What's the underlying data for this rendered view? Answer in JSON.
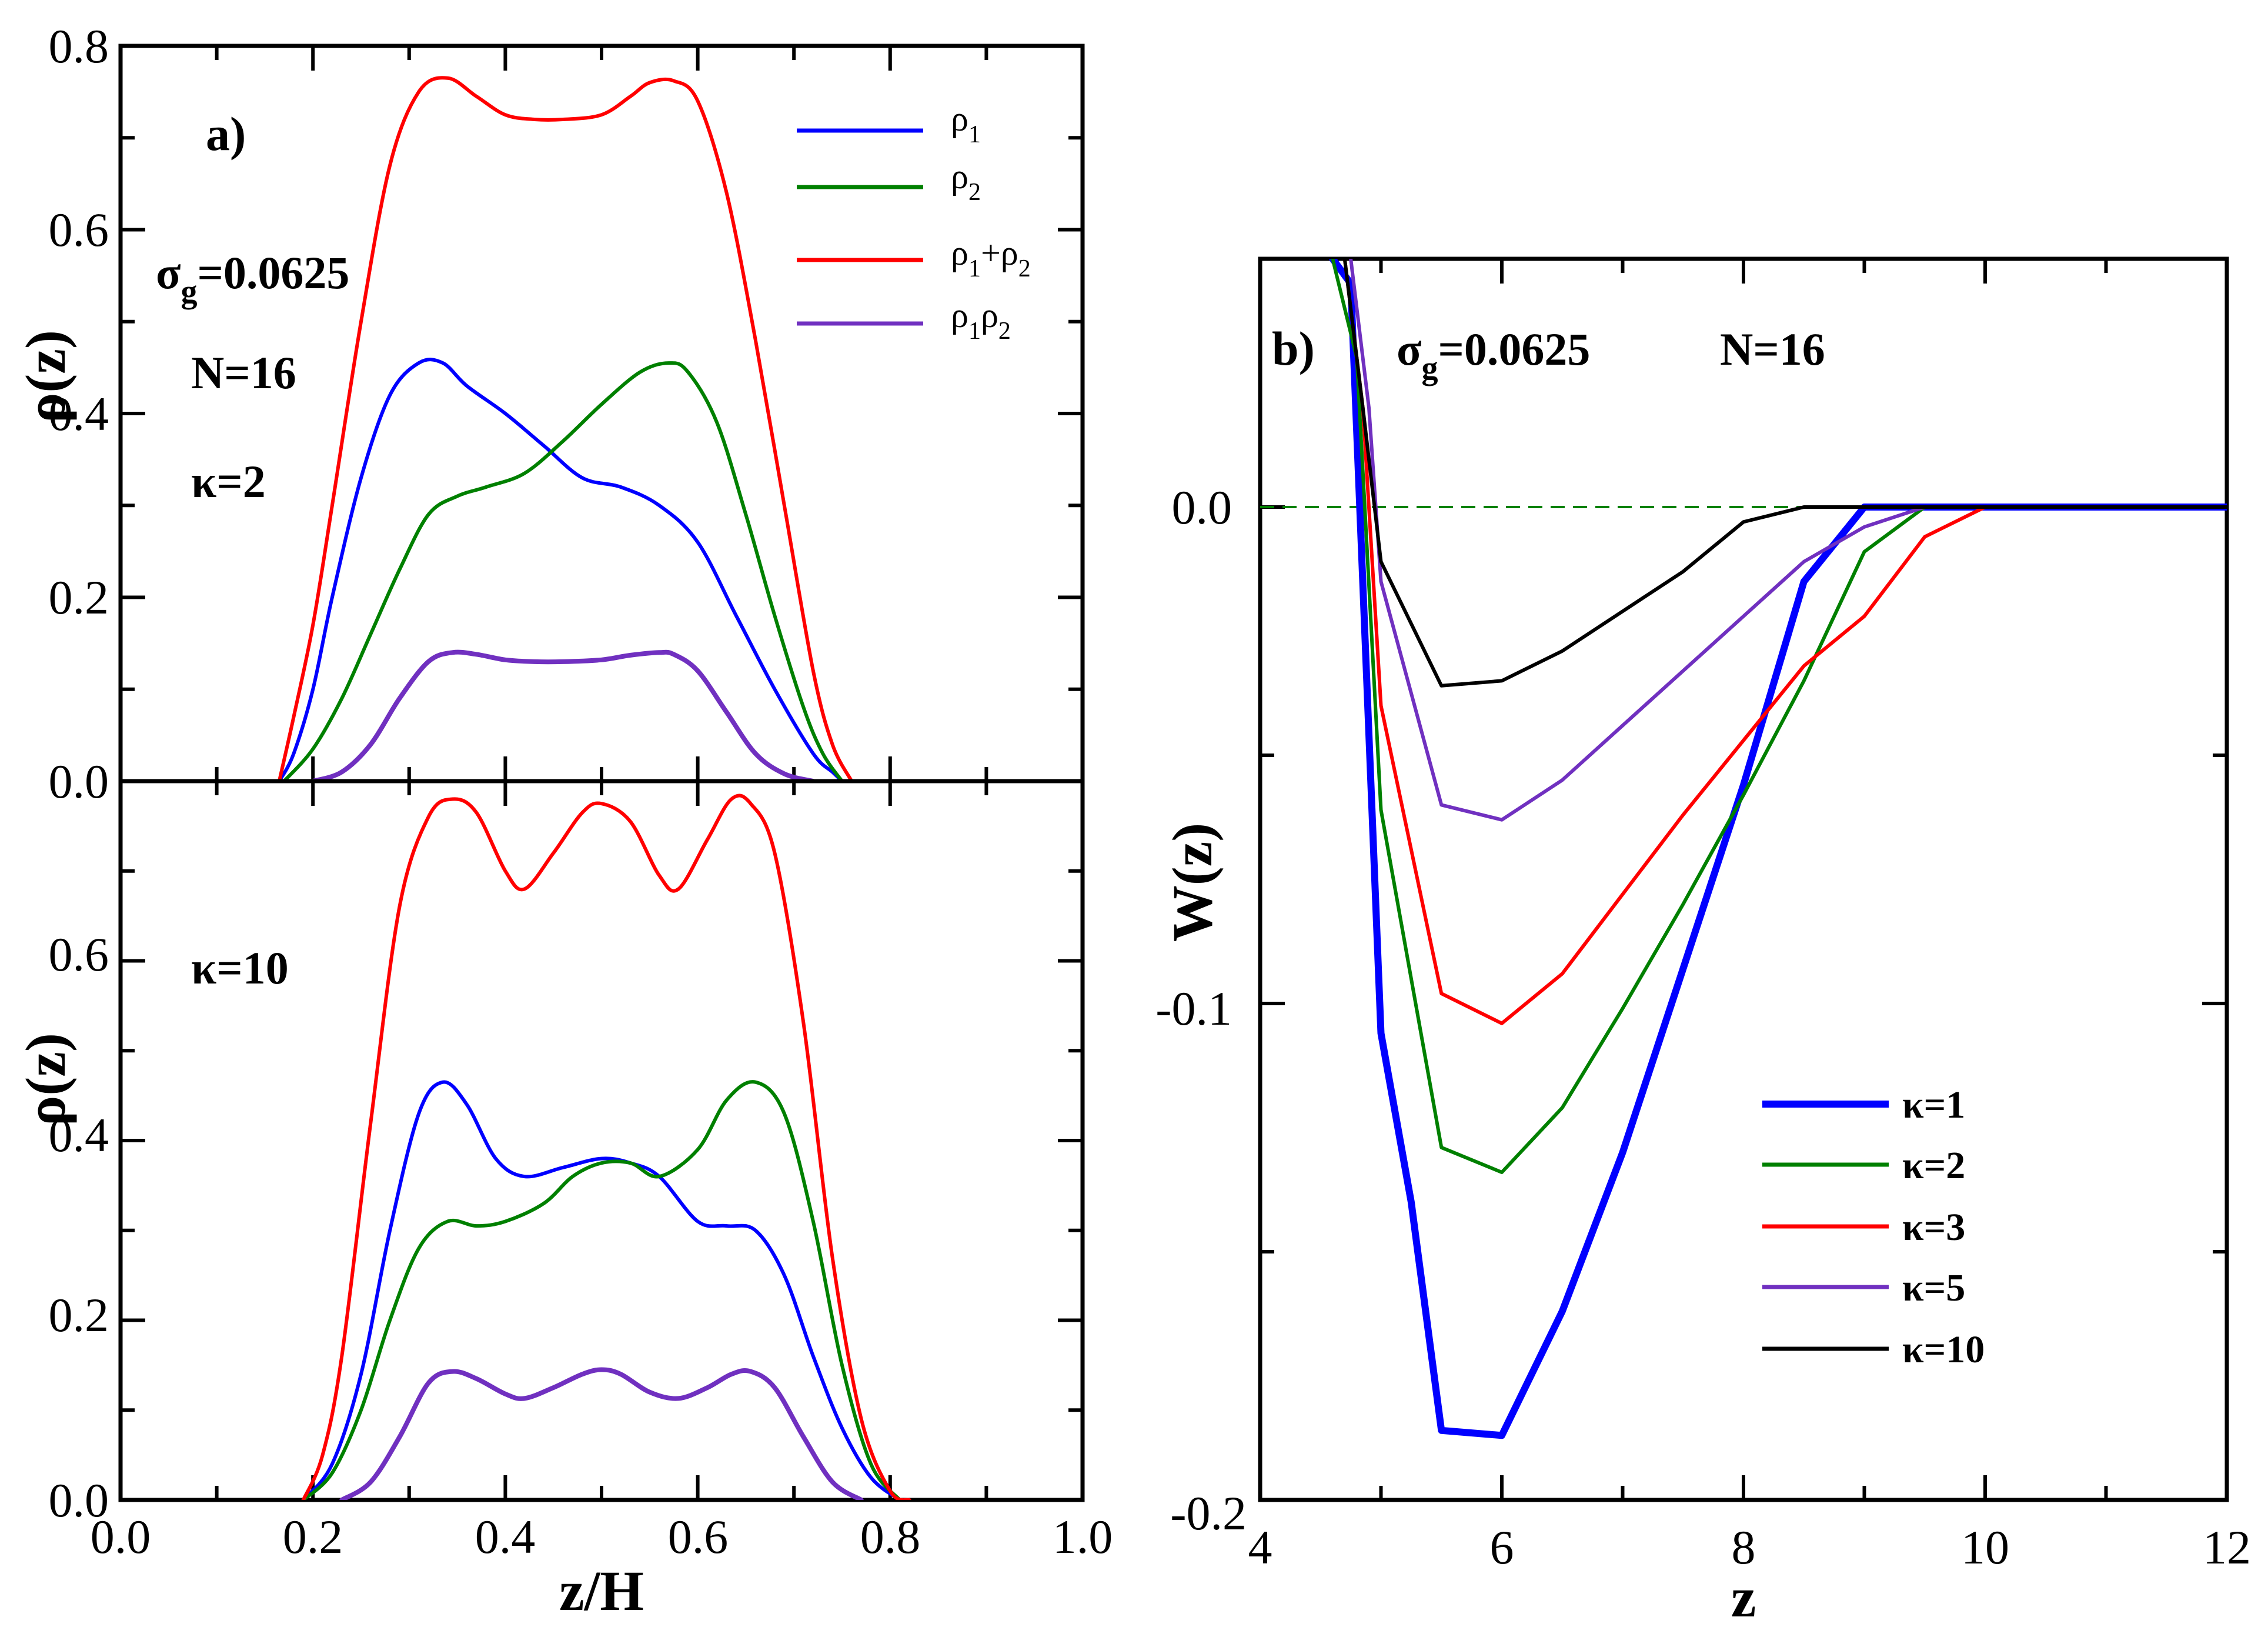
{
  "chart_data": [
    {
      "type": "line",
      "panel": "a) top",
      "panel_label": "a)",
      "xlabel": "z/H",
      "ylabel": "ρ(z)",
      "xlim": [
        0.0,
        1.0
      ],
      "ylim": [
        0.0,
        0.8
      ],
      "x_ticks": [
        "0.0",
        "0.2",
        "0.4",
        "0.6",
        "0.8",
        "1.0"
      ],
      "y_ticks": [
        "0.0",
        "0.2",
        "0.4",
        "0.6",
        "0.8"
      ],
      "annotations": [
        "σ",
        "g",
        "=0.0625",
        "N=16",
        "κ=2"
      ],
      "legend": {
        "placement": "top-right",
        "labels": [
          "ρ1",
          "ρ2",
          "ρ1+ρ2",
          "ρ1ρ2"
        ]
      },
      "series": [
        {
          "name": "ρ1",
          "color": "#0000ff",
          "x": [
            0.165,
            0.18,
            0.2,
            0.22,
            0.25,
            0.28,
            0.31,
            0.335,
            0.36,
            0.4,
            0.44,
            0.48,
            0.52,
            0.56,
            0.6,
            0.64,
            0.68,
            0.72,
            0.74,
            0.75
          ],
          "y": [
            0.0,
            0.03,
            0.1,
            0.2,
            0.33,
            0.42,
            0.455,
            0.455,
            0.43,
            0.4,
            0.365,
            0.33,
            0.32,
            0.3,
            0.26,
            0.18,
            0.1,
            0.03,
            0.01,
            0.0
          ]
        },
        {
          "name": "ρ2",
          "color": "#008000",
          "x": [
            0.17,
            0.2,
            0.23,
            0.26,
            0.29,
            0.32,
            0.35,
            0.38,
            0.42,
            0.46,
            0.5,
            0.54,
            0.57,
            0.59,
            0.62,
            0.65,
            0.68,
            0.71,
            0.73,
            0.75
          ],
          "y": [
            0.0,
            0.035,
            0.09,
            0.16,
            0.23,
            0.29,
            0.31,
            0.32,
            0.335,
            0.37,
            0.41,
            0.445,
            0.455,
            0.445,
            0.39,
            0.29,
            0.18,
            0.08,
            0.03,
            0.0
          ]
        },
        {
          "name": "ρ1+ρ2",
          "color": "#ff0000",
          "x": [
            0.165,
            0.18,
            0.2,
            0.22,
            0.25,
            0.28,
            0.31,
            0.34,
            0.37,
            0.4,
            0.43,
            0.46,
            0.5,
            0.53,
            0.55,
            0.575,
            0.6,
            0.63,
            0.66,
            0.69,
            0.72,
            0.74,
            0.76
          ],
          "y": [
            0.0,
            0.07,
            0.17,
            0.3,
            0.5,
            0.67,
            0.75,
            0.765,
            0.745,
            0.725,
            0.72,
            0.72,
            0.725,
            0.745,
            0.76,
            0.762,
            0.74,
            0.64,
            0.48,
            0.3,
            0.12,
            0.04,
            0.0
          ]
        },
        {
          "name": "ρ1ρ2",
          "color": "#7030c0",
          "x": [
            0.2,
            0.23,
            0.26,
            0.29,
            0.32,
            0.345,
            0.37,
            0.4,
            0.43,
            0.46,
            0.5,
            0.53,
            0.56,
            0.575,
            0.6,
            0.63,
            0.66,
            0.69,
            0.72
          ],
          "y": [
            0.0,
            0.01,
            0.04,
            0.09,
            0.13,
            0.14,
            0.138,
            0.132,
            0.13,
            0.13,
            0.132,
            0.137,
            0.14,
            0.138,
            0.12,
            0.075,
            0.03,
            0.008,
            0.0
          ]
        }
      ]
    },
    {
      "type": "line",
      "panel": "a) bottom",
      "xlabel": "z/H",
      "ylabel": "ρ(z)",
      "xlim": [
        0.0,
        1.0
      ],
      "ylim": [
        0.0,
        0.8
      ],
      "x_ticks": [
        "0.0",
        "0.2",
        "0.4",
        "0.6",
        "0.8",
        "1.0"
      ],
      "y_ticks": [
        "0.0",
        "0.2",
        "0.4",
        "0.6"
      ],
      "annotations": [
        "κ=10"
      ],
      "series": [
        {
          "name": "ρ1",
          "color": "#0000ff",
          "x": [
            0.19,
            0.22,
            0.25,
            0.28,
            0.31,
            0.335,
            0.36,
            0.39,
            0.42,
            0.46,
            0.5,
            0.53,
            0.56,
            0.6,
            0.63,
            0.66,
            0.69,
            0.72,
            0.75,
            0.78,
            0.81
          ],
          "y": [
            0.0,
            0.04,
            0.14,
            0.3,
            0.43,
            0.465,
            0.44,
            0.38,
            0.36,
            0.37,
            0.38,
            0.375,
            0.36,
            0.31,
            0.305,
            0.3,
            0.25,
            0.16,
            0.08,
            0.025,
            0.0
          ]
        },
        {
          "name": "ρ2",
          "color": "#008000",
          "x": [
            0.19,
            0.22,
            0.25,
            0.28,
            0.31,
            0.34,
            0.37,
            0.4,
            0.44,
            0.47,
            0.5,
            0.53,
            0.56,
            0.6,
            0.63,
            0.66,
            0.69,
            0.72,
            0.75,
            0.78,
            0.81
          ],
          "y": [
            0.0,
            0.03,
            0.1,
            0.2,
            0.28,
            0.31,
            0.305,
            0.31,
            0.33,
            0.36,
            0.375,
            0.375,
            0.36,
            0.39,
            0.445,
            0.465,
            0.43,
            0.31,
            0.15,
            0.04,
            0.0
          ]
        },
        {
          "name": "ρ1+ρ2",
          "color": "#ff0000",
          "x": [
            0.19,
            0.21,
            0.23,
            0.26,
            0.29,
            0.32,
            0.345,
            0.37,
            0.4,
            0.42,
            0.45,
            0.48,
            0.5,
            0.53,
            0.56,
            0.58,
            0.61,
            0.635,
            0.655,
            0.68,
            0.71,
            0.74,
            0.77,
            0.8,
            0.82
          ],
          "y": [
            0.0,
            0.05,
            0.16,
            0.42,
            0.66,
            0.76,
            0.78,
            0.765,
            0.7,
            0.68,
            0.72,
            0.765,
            0.775,
            0.755,
            0.695,
            0.68,
            0.735,
            0.78,
            0.775,
            0.72,
            0.53,
            0.27,
            0.09,
            0.01,
            0.0
          ]
        },
        {
          "name": "ρ1ρ2",
          "color": "#7030c0",
          "x": [
            0.23,
            0.26,
            0.29,
            0.32,
            0.345,
            0.37,
            0.4,
            0.42,
            0.45,
            0.48,
            0.5,
            0.52,
            0.55,
            0.58,
            0.61,
            0.635,
            0.655,
            0.68,
            0.71,
            0.74,
            0.77
          ],
          "y": [
            0.0,
            0.02,
            0.07,
            0.13,
            0.143,
            0.135,
            0.118,
            0.113,
            0.125,
            0.14,
            0.145,
            0.14,
            0.12,
            0.113,
            0.125,
            0.14,
            0.143,
            0.125,
            0.07,
            0.02,
            0.0
          ]
        }
      ]
    },
    {
      "type": "line",
      "panel": "b)",
      "panel_label": "b)",
      "xlabel": "z",
      "ylabel": "W(z)",
      "xlim": [
        4,
        12
      ],
      "ylim": [
        -0.2,
        0.05
      ],
      "x_ticks": [
        "4",
        "6",
        "8",
        "10",
        "12"
      ],
      "y_ticks": [
        "-0.2",
        "-0.1",
        "0.0"
      ],
      "annotations": [
        "σ",
        "g",
        "=0.0625",
        "N=16"
      ],
      "reference_line": {
        "y": 0.0,
        "style": "dashed",
        "color": "#008000"
      },
      "legend": {
        "placement": "bottom-right",
        "labels": [
          "κ=1",
          "κ=2",
          "κ=3",
          "κ=5",
          "κ=10"
        ]
      },
      "series": [
        {
          "name": "κ=1",
          "color": "#0000ff",
          "x": [
            4.6,
            4.75,
            5.0,
            5.25,
            5.5,
            6.0,
            6.5,
            7.0,
            7.5,
            8.0,
            8.5,
            9.0,
            9.5,
            10,
            12
          ],
          "y": [
            0.05,
            0.045,
            -0.106,
            -0.14,
            -0.186,
            -0.187,
            -0.162,
            -0.13,
            -0.093,
            -0.056,
            -0.015,
            0.0,
            0.0,
            0.0,
            0.0
          ]
        },
        {
          "name": "κ=2",
          "color": "#008000",
          "x": [
            4.6,
            4.8,
            5.0,
            5.5,
            6.0,
            6.5,
            7.0,
            7.5,
            8.0,
            8.5,
            9.0,
            9.5,
            10,
            12
          ],
          "y": [
            0.05,
            0.03,
            -0.061,
            -0.129,
            -0.134,
            -0.121,
            -0.101,
            -0.08,
            -0.058,
            -0.035,
            -0.009,
            0.0,
            0.0,
            0.0
          ]
        },
        {
          "name": "κ=3",
          "color": "#ff0000",
          "x": [
            4.7,
            4.85,
            5.0,
            5.5,
            6.0,
            6.5,
            7.0,
            7.5,
            8.0,
            8.5,
            9.0,
            9.5,
            10,
            12
          ],
          "y": [
            0.05,
            0.02,
            -0.04,
            -0.098,
            -0.104,
            -0.094,
            -0.078,
            -0.062,
            -0.047,
            -0.032,
            -0.022,
            -0.006,
            0.0,
            0.0
          ]
        },
        {
          "name": "κ=5",
          "color": "#7030c0",
          "x": [
            4.75,
            4.9,
            5.0,
            5.5,
            6.0,
            6.5,
            7.0,
            7.5,
            8.0,
            8.5,
            9.0,
            9.5,
            10,
            12
          ],
          "y": [
            0.05,
            0.02,
            -0.015,
            -0.06,
            -0.063,
            -0.055,
            -0.044,
            -0.033,
            -0.022,
            -0.011,
            -0.004,
            0.0,
            0.0,
            0.0
          ]
        },
        {
          "name": "κ=10",
          "color": "#000000",
          "x": [
            4.7,
            4.85,
            5.0,
            5.5,
            6.0,
            6.5,
            7.0,
            7.5,
            8.0,
            8.5,
            9.0,
            10,
            12
          ],
          "y": [
            0.05,
            0.02,
            -0.011,
            -0.036,
            -0.035,
            -0.029,
            -0.021,
            -0.013,
            -0.003,
            0.0,
            0.0,
            0.0,
            0.0
          ]
        }
      ]
    }
  ]
}
